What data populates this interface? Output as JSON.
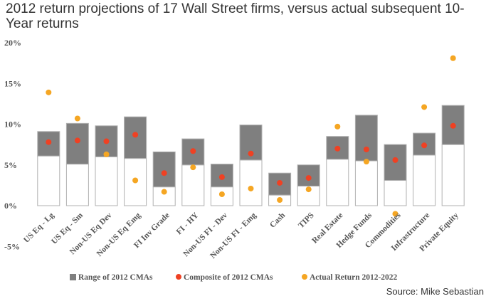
{
  "chart_data": {
    "type": "bar",
    "title": "2012 return projections of 17 Wall Street firms, versus actual subsequent 10-Year returns",
    "source": "Source: Mike Sebastian",
    "ylim": [
      -5,
      20
    ],
    "yticks": [
      -5,
      0,
      5,
      10,
      15,
      20
    ],
    "ytick_labels": [
      "-5%",
      "0%",
      "5%",
      "10%",
      "15%",
      "20%"
    ],
    "categories": [
      "US Eq - Lg",
      "US Eq - Sm",
      "Non-US Eq Dev",
      "Non-US Eq Emg",
      "FI Inv Grade",
      "FI - HY",
      "Non-US FI - Dev",
      "Non-US FI - Emg",
      "Cash",
      "TIPS",
      "Real Estate",
      "Hedge Funds",
      "Commodities",
      "Infrastructure",
      "Private Equity"
    ],
    "series": [
      {
        "name": "Range of 2012 CMAs",
        "low": [
          6.1,
          5.1,
          6.0,
          5.8,
          2.3,
          5.0,
          2.3,
          5.6,
          1.3,
          2.4,
          5.7,
          5.5,
          3.1,
          6.2,
          7.5
        ],
        "high": [
          9.1,
          10.1,
          9.8,
          10.9,
          6.6,
          8.2,
          5.1,
          9.9,
          4.0,
          5.0,
          8.5,
          11.1,
          7.5,
          8.9,
          12.3
        ]
      },
      {
        "name": "Composite of 2012 CMAs",
        "values": [
          7.8,
          8.0,
          7.9,
          8.7,
          4.0,
          6.7,
          3.5,
          6.4,
          2.8,
          3.4,
          7.0,
          6.9,
          5.6,
          7.4,
          9.8
        ]
      },
      {
        "name": "Actual Return 2012-2022",
        "values": [
          13.9,
          10.7,
          6.3,
          3.1,
          1.7,
          4.7,
          1.4,
          2.1,
          0.7,
          2.0,
          9.7,
          5.4,
          -1.0,
          12.1,
          18.1
        ]
      }
    ],
    "colors": {
      "range": "#7f7f7f",
      "composite": "#ef4123",
      "actual": "#f5a623",
      "frame": "#b0b0b0"
    },
    "legend_position": "bottom",
    "grid": false
  }
}
